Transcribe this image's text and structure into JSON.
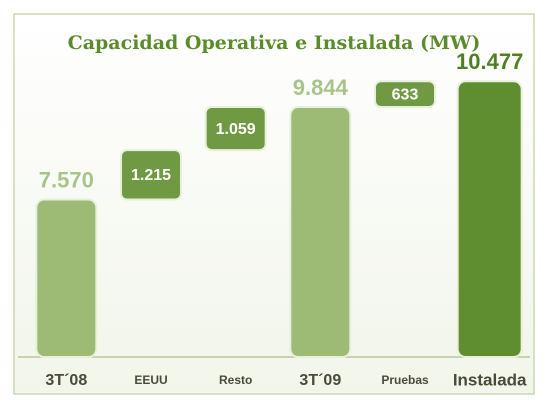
{
  "chart_data": {
    "type": "waterfall",
    "title": "Capacidad Operativa e Instalada (MW)",
    "categories": [
      "3T´08",
      "EEUU",
      "Resto",
      "3T´09",
      "Pruebas",
      "Instalada"
    ],
    "values": [
      7570,
      1215,
      1059,
      9844,
      633,
      10477
    ],
    "value_labels": [
      "7.570",
      "1.215",
      "1.059",
      "9.844",
      "633",
      "10.477"
    ],
    "totals": [
      true,
      false,
      false,
      true,
      false,
      true
    ],
    "colors": [
      "#9dbb74",
      "#6f9a43",
      "#6f9a43",
      "#9dbb74",
      "#6f9a43",
      "#5f8e31"
    ],
    "ylim": [
      3700,
      11000
    ]
  }
}
